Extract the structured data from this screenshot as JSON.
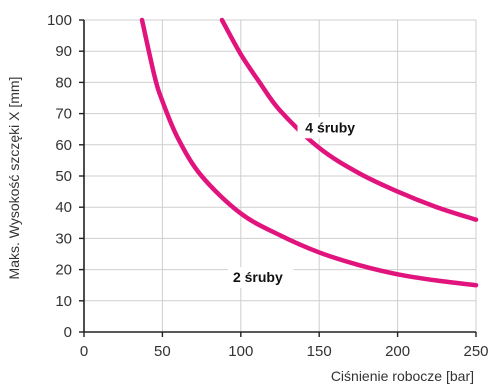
{
  "chart_data": {
    "type": "line",
    "xlabel": "Ciśnienie robocze [bar]",
    "ylabel": "Maks. Wysokość szczęki X [mm]",
    "xlim": [
      0,
      250
    ],
    "ylim": [
      0,
      100
    ],
    "xticks": [
      0,
      50,
      100,
      150,
      200,
      250
    ],
    "yticks": [
      0,
      10,
      20,
      30,
      40,
      50,
      60,
      70,
      80,
      90,
      100
    ],
    "grid": true,
    "line_color": "#e0147c",
    "series": [
      {
        "name": "2 śruby",
        "x": [
          37,
          45,
          50,
          60,
          75,
          100,
          125,
          150,
          175,
          200,
          225,
          250
        ],
        "y": [
          100,
          82,
          74,
          62,
          50,
          38,
          31,
          25.5,
          21.5,
          18.5,
          16.5,
          15
        ]
      },
      {
        "name": "4 śruby",
        "x": [
          88,
          100,
          112,
          125,
          150,
          175,
          200,
          225,
          250
        ],
        "y": [
          100,
          89,
          80,
          71,
          59,
          51,
          45,
          40,
          36
        ]
      }
    ]
  }
}
